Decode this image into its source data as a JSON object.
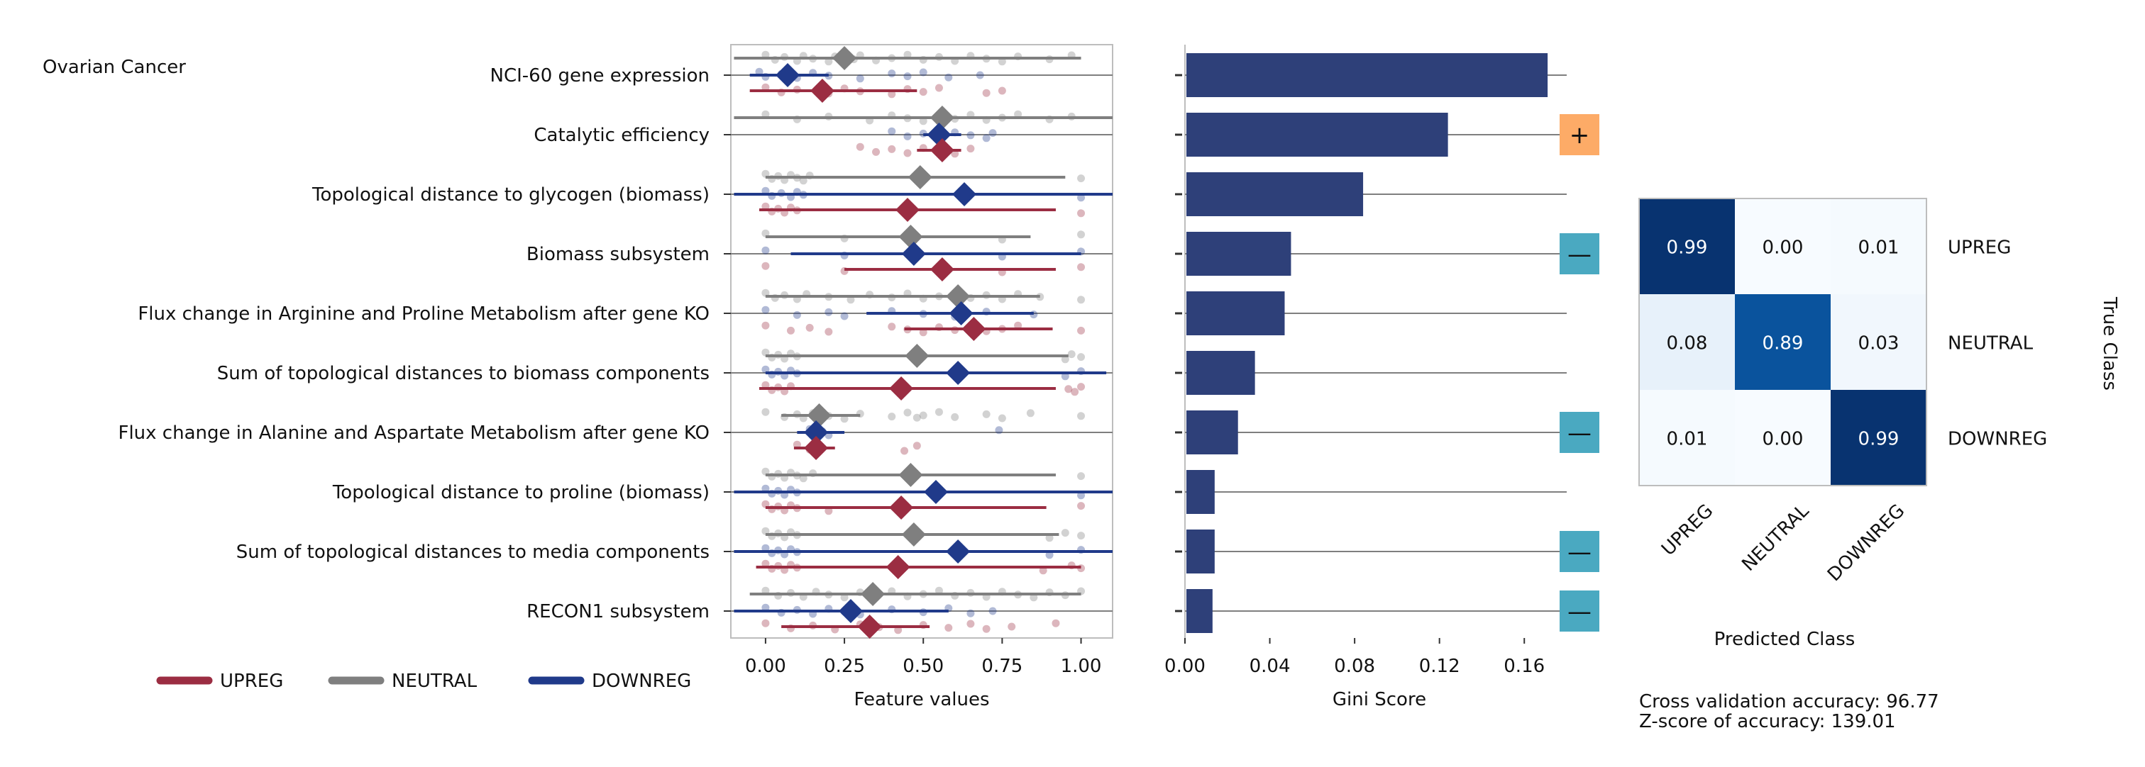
{
  "figure_title": "Ovarian Cancer",
  "summary": {
    "accuracy_label": "Cross validation accuracy: 96.77",
    "zscore_label": "Z-score of accuracy: 139.01"
  },
  "colors": {
    "UPREG": "#9b2d42",
    "NEUTRAL": "#7f7f7f",
    "DOWNREG": "#203a8a",
    "bar": "#2e4079",
    "plus_marker": "#fdab67",
    "minus_marker": "#4aa9c1"
  },
  "legend": [
    "UPREG",
    "NEUTRAL",
    "DOWNREG"
  ],
  "chart_data": [
    {
      "type": "scatter",
      "name": "feature-values",
      "xlabel": "Feature values",
      "xlim": [
        -0.11,
        1.1
      ],
      "xticks": [
        "0.00",
        "0.25",
        "0.50",
        "0.75",
        "1.00"
      ],
      "features": [
        {
          "label": "NCI-60 gene expression",
          "NEUTRAL": {
            "mean": 0.25,
            "range": [
              -0.1,
              1.0
            ],
            "points": [
              0.0,
              0.03,
              0.06,
              0.1,
              0.12,
              0.15,
              0.2,
              0.22,
              0.28,
              0.3,
              0.35,
              0.4,
              0.45,
              0.5,
              0.55,
              0.6,
              0.65,
              0.7,
              0.75,
              0.8,
              0.9,
              0.97
            ]
          },
          "DOWNREG": {
            "mean": 0.07,
            "range": [
              -0.05,
              0.2
            ],
            "points": [
              -0.02,
              0.0,
              0.05,
              0.1,
              0.15,
              0.2,
              0.3,
              0.4,
              0.45,
              0.5,
              0.58,
              0.68
            ]
          },
          "UPREG": {
            "mean": 0.18,
            "range": [
              -0.05,
              0.48
            ],
            "points": [
              0.0,
              0.05,
              0.1,
              0.2,
              0.25,
              0.3,
              0.4,
              0.45,
              0.5,
              0.55,
              0.7,
              0.75
            ]
          }
        },
        {
          "label": "Catalytic efficiency",
          "NEUTRAL": {
            "mean": 0.56,
            "range": [
              -0.1,
              1.1
            ],
            "points": [
              0.0,
              0.1,
              0.2,
              0.33,
              0.4,
              0.45,
              0.5,
              0.55,
              0.6,
              0.65,
              0.7,
              0.75,
              0.8,
              0.9,
              0.97
            ]
          },
          "DOWNREG": {
            "mean": 0.55,
            "range": [
              0.5,
              0.62
            ],
            "points": [
              0.4,
              0.45,
              0.5,
              0.55,
              0.6,
              0.65,
              0.7,
              0.72
            ]
          },
          "UPREG": {
            "mean": 0.56,
            "range": [
              0.48,
              0.62
            ],
            "points": [
              0.3,
              0.35,
              0.4,
              0.45,
              0.5,
              0.55,
              0.6,
              0.65
            ]
          }
        },
        {
          "label": "Topological distance to glycogen (biomass)",
          "NEUTRAL": {
            "mean": 0.49,
            "range": [
              0.0,
              0.95
            ],
            "points": [
              0.0,
              0.02,
              0.04,
              0.06,
              0.08,
              0.1,
              0.12,
              0.14,
              1.0
            ]
          },
          "DOWNREG": {
            "mean": 0.63,
            "range": [
              -0.1,
              1.1
            ],
            "points": [
              0.0,
              0.02,
              0.05,
              0.08,
              0.1,
              0.12,
              1.0
            ]
          },
          "UPREG": {
            "mean": 0.45,
            "range": [
              -0.02,
              0.92
            ],
            "points": [
              0.0,
              0.02,
              0.04,
              0.06,
              0.08,
              0.1,
              1.0
            ]
          }
        },
        {
          "label": "Biomass subsystem",
          "NEUTRAL": {
            "mean": 0.46,
            "range": [
              0.0,
              0.84
            ],
            "points": [
              0.0,
              0.25,
              0.46,
              0.75,
              1.0
            ]
          },
          "DOWNREG": {
            "mean": 0.47,
            "range": [
              0.08,
              1.0
            ],
            "points": [
              0.0,
              0.25,
              0.46,
              0.75,
              1.0
            ]
          },
          "UPREG": {
            "mean": 0.56,
            "range": [
              0.25,
              0.92
            ],
            "points": [
              0.0,
              0.25,
              0.56,
              0.75,
              1.0
            ]
          }
        },
        {
          "label": "Flux change in Arginine and Proline Metabolism after gene KO",
          "NEUTRAL": {
            "mean": 0.61,
            "range": [
              0.0,
              0.87
            ],
            "points": [
              0.0,
              0.03,
              0.06,
              0.1,
              0.13,
              0.2,
              0.27,
              0.33,
              0.4,
              0.45,
              0.5,
              0.55,
              0.6,
              0.65,
              0.7,
              0.75,
              0.8,
              0.87,
              1.0
            ]
          },
          "DOWNREG": {
            "mean": 0.62,
            "range": [
              0.32,
              0.85
            ],
            "points": [
              0.0,
              0.1,
              0.2,
              0.25,
              0.4,
              0.5,
              0.6,
              0.7,
              0.85
            ]
          },
          "UPREG": {
            "mean": 0.66,
            "range": [
              0.44,
              0.91
            ],
            "points": [
              0.0,
              0.08,
              0.14,
              0.2,
              0.4,
              0.45,
              0.5,
              0.55,
              0.6,
              0.65,
              0.7,
              0.75,
              0.8,
              1.0
            ]
          }
        },
        {
          "label": "Sum of topological distances to biomass components",
          "NEUTRAL": {
            "mean": 0.48,
            "range": [
              0.0,
              0.96
            ],
            "points": [
              0.0,
              0.02,
              0.04,
              0.06,
              0.08,
              0.1,
              0.95,
              0.97,
              1.0
            ]
          },
          "DOWNREG": {
            "mean": 0.61,
            "range": [
              0.0,
              1.08
            ],
            "points": [
              0.0,
              0.02,
              0.04,
              0.06,
              0.08,
              0.1,
              0.95,
              1.0
            ]
          },
          "UPREG": {
            "mean": 0.43,
            "range": [
              -0.02,
              0.92
            ],
            "points": [
              0.0,
              0.02,
              0.04,
              0.06,
              0.08,
              0.96,
              0.98,
              1.0
            ]
          }
        },
        {
          "label": "Flux change in Alanine and Aspartate Metabolism after gene KO",
          "NEUTRAL": {
            "mean": 0.17,
            "range": [
              0.05,
              0.3
            ],
            "points": [
              0.0,
              0.06,
              0.1,
              0.12,
              0.15,
              0.2,
              0.25,
              0.3,
              0.4,
              0.45,
              0.48,
              0.5,
              0.55,
              0.6,
              0.7,
              0.75,
              0.84,
              1.0
            ]
          },
          "DOWNREG": {
            "mean": 0.16,
            "range": [
              0.1,
              0.25
            ],
            "points": [
              0.14,
              0.16,
              0.18,
              0.2,
              0.74
            ]
          },
          "UPREG": {
            "mean": 0.16,
            "range": [
              0.09,
              0.22
            ],
            "points": [
              0.1,
              0.14,
              0.16,
              0.44,
              0.48
            ]
          }
        },
        {
          "label": "Topological distance to proline (biomass)",
          "NEUTRAL": {
            "mean": 0.46,
            "range": [
              0.0,
              0.92
            ],
            "points": [
              0.0,
              0.02,
              0.04,
              0.06,
              0.08,
              0.1,
              0.12,
              0.15,
              1.0
            ]
          },
          "DOWNREG": {
            "mean": 0.54,
            "range": [
              -0.1,
              1.1
            ],
            "points": [
              0.0,
              0.02,
              0.04,
              0.06,
              0.08,
              0.1,
              1.0
            ]
          },
          "UPREG": {
            "mean": 0.43,
            "range": [
              0.0,
              0.89
            ],
            "points": [
              0.0,
              0.02,
              0.04,
              0.06,
              0.08,
              0.1,
              0.2,
              1.0
            ]
          }
        },
        {
          "label": "Sum of topological distances to media components",
          "NEUTRAL": {
            "mean": 0.47,
            "range": [
              0.0,
              0.93
            ],
            "points": [
              0.0,
              0.02,
              0.04,
              0.06,
              0.08,
              0.1,
              0.9,
              0.95,
              1.0
            ]
          },
          "DOWNREG": {
            "mean": 0.61,
            "range": [
              -0.1,
              1.1
            ],
            "points": [
              0.0,
              0.02,
              0.04,
              0.06,
              0.08,
              0.1,
              0.9,
              1.0
            ]
          },
          "UPREG": {
            "mean": 0.42,
            "range": [
              -0.03,
              1.0
            ],
            "points": [
              0.0,
              0.02,
              0.04,
              0.06,
              0.08,
              0.1,
              0.88,
              0.97,
              1.0
            ]
          }
        },
        {
          "label": "RECON1 subsystem",
          "NEUTRAL": {
            "mean": 0.34,
            "range": [
              -0.05,
              1.0
            ],
            "points": [
              0.0,
              0.04,
              0.08,
              0.12,
              0.16,
              0.2,
              0.25,
              0.3,
              0.35,
              0.4,
              0.45,
              0.5,
              0.55,
              0.6,
              0.65,
              0.7,
              0.75,
              0.8,
              0.85,
              0.9,
              0.95,
              1.0
            ]
          },
          "DOWNREG": {
            "mean": 0.27,
            "range": [
              -0.1,
              0.58
            ],
            "points": [
              0.0,
              0.05,
              0.1,
              0.15,
              0.2,
              0.25,
              0.3,
              0.4,
              0.5,
              0.58,
              0.65,
              0.72
            ]
          },
          "UPREG": {
            "mean": 0.33,
            "range": [
              0.05,
              0.52
            ],
            "points": [
              0.0,
              0.08,
              0.15,
              0.22,
              0.3,
              0.36,
              0.42,
              0.5,
              0.58,
              0.65,
              0.7,
              0.78,
              0.92
            ]
          }
        }
      ]
    },
    {
      "type": "bar",
      "name": "gini-importance",
      "xlabel": "Gini Score",
      "xlim": [
        0,
        0.18
      ],
      "xticks": [
        "0.00",
        "0.04",
        "0.08",
        "0.12",
        "0.16"
      ],
      "values": [
        0.171,
        0.124,
        0.084,
        0.05,
        0.047,
        0.033,
        0.025,
        0.014,
        0.014,
        0.013
      ],
      "markers": [
        "",
        "+",
        "",
        "—",
        "",
        "",
        "—",
        "",
        "—",
        "—"
      ]
    },
    {
      "type": "heatmap",
      "name": "confusion-matrix",
      "xlabel": "Predicted Class",
      "ylabel": "True Class",
      "classes": [
        "UPREG",
        "NEUTRAL",
        "DOWNREG"
      ],
      "values": [
        [
          0.99,
          0.0,
          0.01
        ],
        [
          0.08,
          0.89,
          0.03
        ],
        [
          0.01,
          0.0,
          0.99
        ]
      ],
      "labels": [
        [
          "0.99",
          "0.00",
          "0.01"
        ],
        [
          "0.08",
          "0.89",
          "0.03"
        ],
        [
          "0.01",
          "0.00",
          "0.99"
        ]
      ]
    }
  ]
}
